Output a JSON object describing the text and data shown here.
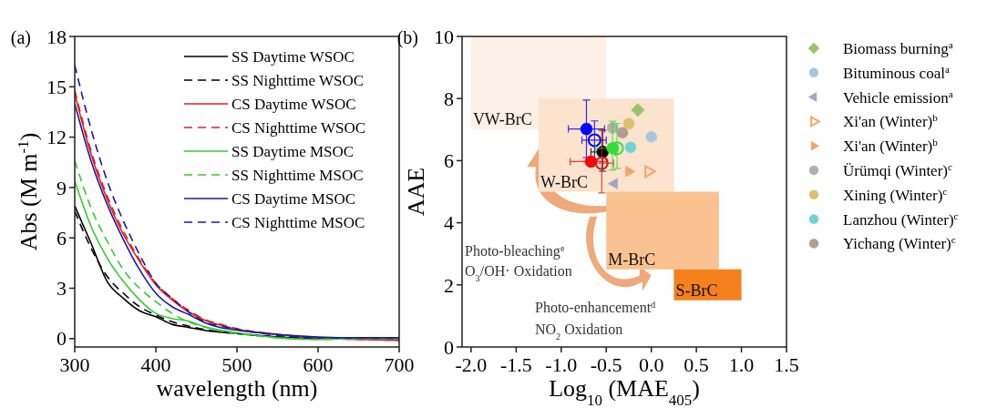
{
  "chart_data": [
    {
      "type": "line",
      "title": "(a)",
      "xlabel": "wavelength (nm)",
      "ylabel": "Abs (M m$^{-1}$)",
      "x": [
        300,
        320,
        340,
        360,
        380,
        400,
        420,
        440,
        460,
        480,
        500,
        550,
        600,
        650,
        700
      ],
      "xlim": [
        300,
        700
      ],
      "ylim": [
        -0.5,
        18
      ],
      "xticks": [
        300,
        400,
        500,
        600,
        700
      ],
      "yticks": [
        0,
        3,
        6,
        9,
        12,
        15,
        18
      ],
      "legend": "top right",
      "series": [
        {
          "name": "SS Daytime WSOC",
          "color": "#000000",
          "line_style": "solid",
          "values": [
            7.9,
            5.7,
            3.4,
            2.4,
            1.66,
            1.3,
            0.85,
            0.67,
            0.49,
            0.38,
            0.3,
            0.1,
            0.02,
            0.0,
            0.0
          ]
        },
        {
          "name": "SS Nighttime WSOC",
          "color": "#000000",
          "line_style": "dashed",
          "values": [
            7.6,
            5.4,
            3.7,
            2.7,
            1.9,
            1.4,
            1.0,
            0.75,
            0.55,
            0.4,
            0.3,
            0.1,
            0.03,
            0.0,
            0.0
          ]
        },
        {
          "name": "CS Daytime WSOC",
          "color": "#e02020",
          "line_style": "solid",
          "values": [
            14.6,
            11.0,
            8.3,
            6.2,
            4.6,
            3.2,
            2.3,
            1.6,
            1.1,
            0.8,
            0.55,
            0.25,
            0.05,
            -0.05,
            -0.1
          ]
        },
        {
          "name": "CS Nighttime WSOC",
          "color": "#e02020",
          "line_style": "dashed",
          "values": [
            14.8,
            11.2,
            8.5,
            6.4,
            4.7,
            3.3,
            2.4,
            1.7,
            1.15,
            0.85,
            0.6,
            0.25,
            0.05,
            -0.05,
            -0.1
          ]
        },
        {
          "name": "SS Daytime MSOC",
          "color": "#33cc33",
          "line_style": "solid",
          "values": [
            9.4,
            6.7,
            4.8,
            3.4,
            2.3,
            1.5,
            1.2,
            1.05,
            0.7,
            0.5,
            0.35,
            0.05,
            -0.05,
            0.0,
            0.0
          ]
        },
        {
          "name": "SS Nighttime MSOC",
          "color": "#33cc33",
          "line_style": "dashed",
          "values": [
            10.6,
            7.8,
            5.8,
            4.1,
            3.0,
            2.2,
            1.5,
            1.0,
            0.7,
            0.45,
            0.3,
            0.05,
            -0.05,
            0.0,
            0.0
          ]
        },
        {
          "name": "CS Daytime MSOC",
          "color": "#1a1aa6",
          "line_style": "solid",
          "values": [
            14.0,
            10.6,
            8.0,
            5.9,
            4.1,
            2.7,
            1.9,
            1.45,
            0.95,
            0.65,
            0.5,
            0.25,
            0.1,
            0.05,
            0.05
          ]
        },
        {
          "name": "CS Nighttime MSOC",
          "color": "#1a1aa6",
          "line_style": "dashed",
          "values": [
            16.3,
            12.5,
            9.4,
            7.0,
            5.0,
            3.3,
            2.4,
            1.6,
            1.0,
            0.75,
            0.55,
            0.2,
            0.05,
            0.05,
            0.05
          ]
        }
      ]
    },
    {
      "type": "scatter",
      "title": "(b)",
      "xlabel": "Log$_{10}$ (MAE$_{405}$)",
      "ylabel": "AAE",
      "xlim": [
        -2.1,
        1.5
      ],
      "ylim": [
        0,
        10
      ],
      "xticks": [
        {
          "value": -2,
          "label": "-2.0"
        },
        {
          "value": -1.5,
          "label": "-1.5"
        },
        {
          "value": -1,
          "label": "-1.0"
        },
        {
          "value": -0.5,
          "label": "-0.5"
        },
        {
          "value": 0,
          "label": "0.0"
        },
        {
          "value": 0.5,
          "label": "0.5"
        },
        {
          "value": 1,
          "label": "1.0"
        },
        {
          "value": 1.5,
          "label": "1.5"
        }
      ],
      "yticks": [
        0,
        2,
        4,
        6,
        8,
        10
      ],
      "legend": "right",
      "annotations": [
        "Photo-bleaching$^{e}$",
        "O$_{3}$/OH· Oxidation",
        "Photo-enhancement$^{d}$",
        "NO$_{2}$ Oxidation",
        {
          "text": "VW-BrC",
          "x": -2.0,
          "y": 7
        },
        {
          "text": "W-BrC",
          "x": -1.25,
          "y": 5
        },
        {
          "text": "M-BrC",
          "x": -0.5,
          "y": 2.5
        },
        {
          "text": "S-BrC",
          "x": 0.25,
          "y": 1.5
        }
      ],
      "series": [
        {
          "type": "area",
          "color": "#fdf0e6",
          "x": [
            -2.0,
            -0.5
          ],
          "values": [
            null,
            null
          ],
          "lower": [
            7,
            7
          ],
          "upper": [
            10,
            10
          ]
        },
        {
          "type": "area",
          "color": "#fbe3cd",
          "x": [
            -1.25,
            0.25
          ],
          "values": [
            null,
            null
          ],
          "lower": [
            5,
            5
          ],
          "upper": [
            8,
            8
          ]
        },
        {
          "type": "area",
          "color": "#f9c290",
          "x": [
            -0.5,
            0.75
          ],
          "values": [
            null,
            null
          ],
          "lower": [
            2.5,
            2.5
          ],
          "upper": [
            5,
            5
          ]
        },
        {
          "type": "area",
          "color": "#f5801e",
          "x": [
            0.25,
            1.0
          ],
          "values": [
            null,
            null
          ],
          "lower": [
            1.5,
            1.5
          ],
          "upper": [
            2.5,
            2.5
          ]
        },
        {
          "name": "Biomass burning$^{a}$",
          "color": "#9dc36a",
          "marker": "diamond",
          "x": [
            -0.15
          ],
          "values": [
            7.63
          ]
        },
        {
          "name": "Bituminous coal$^{a}$",
          "color": "#a9c4de",
          "marker": "circle",
          "x": [
            0.0
          ],
          "values": [
            6.77
          ]
        },
        {
          "name": "Vehicle emission$^{a}$",
          "color": "#a3a3c4",
          "marker": "triangle-left",
          "x": [
            -0.41
          ],
          "values": [
            5.26
          ]
        },
        {
          "name": "Xi'an (Winter)$^{b}$",
          "color": "#f5a36b",
          "marker": "triangle-right-open",
          "x": [
            -0.03
          ],
          "values": [
            5.65
          ]
        },
        {
          "name": "Xi'an (Winter)$^{b}$",
          "color": "#f5a36b",
          "marker": "triangle-right",
          "x": [
            -0.25
          ],
          "values": [
            5.65
          ]
        },
        {
          "name": "Ürümqi (Winter)$^{c}$",
          "color": "#b0b0b0",
          "marker": "circle",
          "x": [
            -0.43
          ],
          "values": [
            7.05
          ]
        },
        {
          "name": "Xining (Winter)$^{c}$",
          "color": "#dcbf6e",
          "marker": "circle",
          "x": [
            -0.25
          ],
          "values": [
            7.19
          ]
        },
        {
          "name": "Lanzhou (Winter)$^{c}$",
          "color": "#6fd4d0",
          "marker": "circle",
          "x": [
            -0.23
          ],
          "values": [
            6.43
          ]
        },
        {
          "name": "Yichang (Winter)$^{c}$",
          "color": "#b69b94",
          "marker": "circle",
          "x": [
            -0.32
          ],
          "values": [
            6.9
          ]
        },
        {
          "color": "#0000ff",
          "marker": "circle",
          "x": [
            -0.72
          ],
          "values": [
            7.02
          ],
          "errors": [
            [
              6.1,
              7.95
            ]
          ],
          "xerrors": [
            [
              -0.92,
              -0.52
            ]
          ]
        },
        {
          "color": "#0000ff",
          "marker": "circle-open",
          "x": [
            -0.63
          ],
          "values": [
            6.66
          ],
          "errors": [
            [
              6.04,
              7.28
            ]
          ],
          "xerrors": [
            [
              -0.77,
              -0.5
            ]
          ]
        },
        {
          "color": "#000000",
          "marker": "circle",
          "x": [
            -0.54
          ],
          "values": [
            6.28
          ],
          "errors": [
            [
              5.66,
              6.98
            ]
          ],
          "xerrors": [
            [
              -0.67,
              -0.4
            ]
          ]
        },
        {
          "color": "#ff0000",
          "marker": "circle",
          "x": [
            -0.67
          ],
          "values": [
            5.97
          ],
          "xerrors": [
            [
              -0.9,
              -0.49
            ]
          ]
        },
        {
          "color": "#cc2222",
          "marker": "circle-open",
          "x": [
            -0.55
          ],
          "values": [
            5.92
          ],
          "errors": [
            [
              4.96,
              6.98
            ]
          ],
          "xerrors": [
            [
              -0.69,
              -0.42
            ]
          ]
        },
        {
          "color": "#33dd33",
          "marker": "circle-open",
          "x": [
            -0.38
          ],
          "values": [
            6.4
          ],
          "errors": [
            [
              5.75,
              7.2
            ]
          ]
        },
        {
          "color": "#33dd33",
          "marker": "circle",
          "x": [
            -0.43
          ],
          "values": [
            6.4
          ],
          "errors": [
            [
              5.7,
              7.27
            ]
          ],
          "xerrors": [
            [
              -0.62,
              -0.37
            ]
          ]
        }
      ]
    }
  ]
}
